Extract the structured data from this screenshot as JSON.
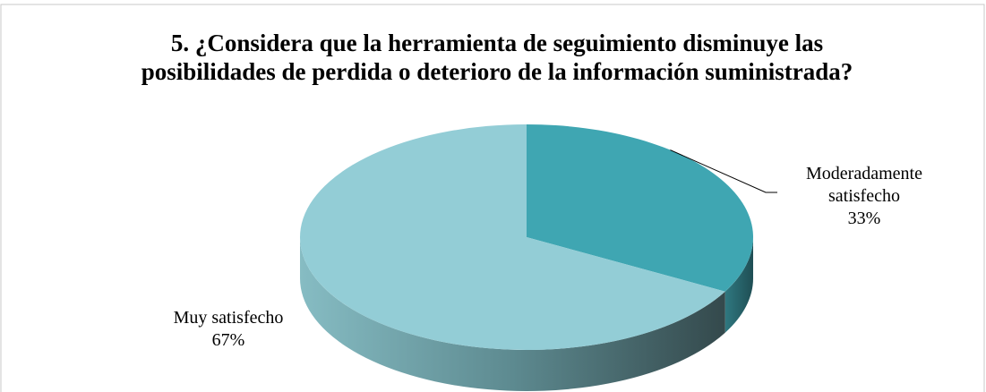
{
  "chart_data": {
    "type": "pie3d",
    "title": "5. ¿Considera que la herramienta de seguimiento disminuye las posibilidades de perdida o deterioro de la información suministrada?",
    "categories": [
      "Moderadamente satisfecho",
      "Muy satisfecho"
    ],
    "values": [
      33,
      67
    ],
    "value_labels": [
      "33%",
      "67%"
    ],
    "colors": [
      "#3fa6b2",
      "#93cdd6"
    ]
  }
}
